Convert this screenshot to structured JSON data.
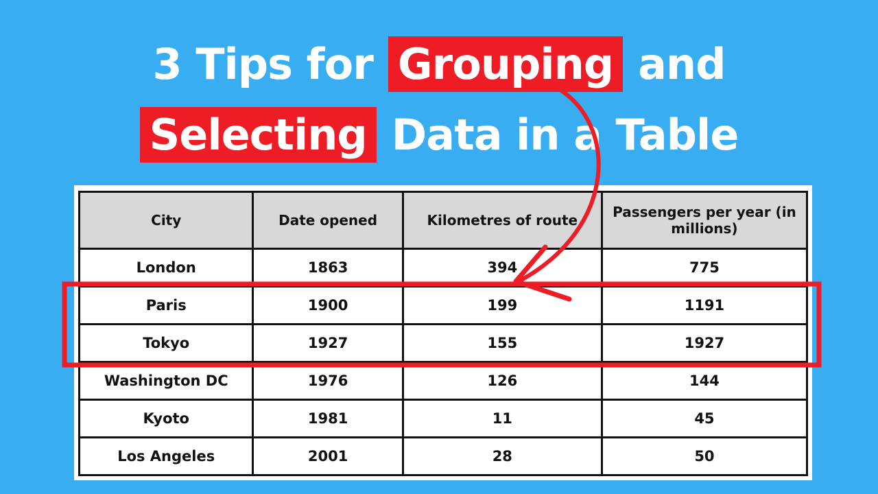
{
  "title": {
    "line1": [
      "3 Tips for",
      "Grouping",
      "and"
    ],
    "line2": [
      "Selecting",
      "Data in a Table"
    ]
  },
  "table": {
    "headers": [
      "City",
      "Date opened",
      "Kilometres of route",
      "Passengers per year (in millions)"
    ],
    "rows": [
      [
        "London",
        1863,
        394,
        775
      ],
      [
        "Paris",
        1900,
        199,
        1191
      ],
      [
        "Tokyo",
        1927,
        155,
        1927
      ],
      [
        "Washington DC",
        1976,
        126,
        144
      ],
      [
        "Kyoto",
        1981,
        11,
        45
      ],
      [
        "Los Angeles",
        2001,
        28,
        50
      ]
    ]
  }
}
